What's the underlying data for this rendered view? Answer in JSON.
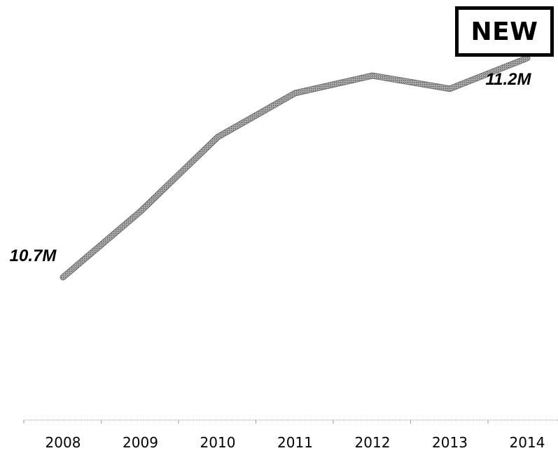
{
  "badge": {
    "label": "NEW"
  },
  "chart_data": {
    "type": "line",
    "title": "",
    "xlabel": "",
    "ylabel": "",
    "categories": [
      "2008",
      "2009",
      "2010",
      "2011",
      "2012",
      "2013",
      "2014"
    ],
    "series": [
      {
        "values": [
          10.7,
          10.85,
          11.02,
          11.12,
          11.16,
          11.13,
          11.2
        ]
      }
    ],
    "annotations": [
      {
        "category": "2008",
        "text": "10.7M"
      },
      {
        "category": "2014",
        "text": "11.2M"
      }
    ],
    "line_color": "#8a8a8a",
    "grid": false,
    "legend": "none"
  }
}
